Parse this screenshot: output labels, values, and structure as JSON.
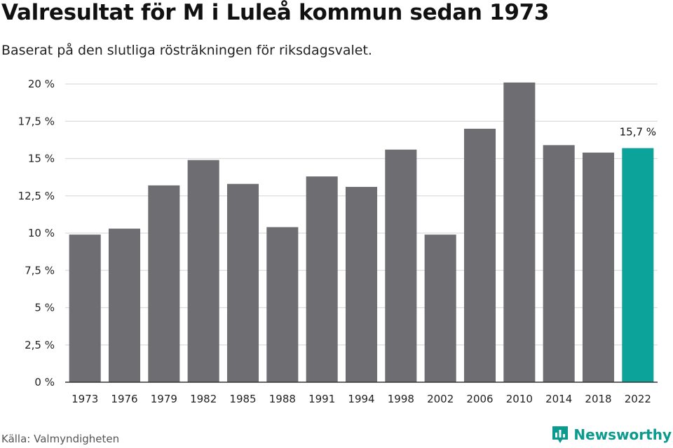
{
  "title": "Valresultat för M i Luleå kommun sedan 1973",
  "subtitle": "Baserat på den slutliga rösträkningen för riksdagsvalet.",
  "source": "Källa: Valmyndigheten",
  "brand": "Newsworthy",
  "colors": {
    "bar": "#6e6d72",
    "highlight": "#0ba39a",
    "grid": "#dcdcdc",
    "axis": "#333333",
    "brand": "#0a9a8e"
  },
  "chart_data": {
    "type": "bar",
    "categories": [
      "1973",
      "1976",
      "1979",
      "1982",
      "1985",
      "1988",
      "1991",
      "1994",
      "1998",
      "2002",
      "2006",
      "2010",
      "2014",
      "2018",
      "2022"
    ],
    "values": [
      9.9,
      10.3,
      13.2,
      14.9,
      13.3,
      10.4,
      13.8,
      13.1,
      15.6,
      9.9,
      17.0,
      20.1,
      15.9,
      15.4,
      15.7
    ],
    "highlight_index": 14,
    "annotation": "15,7 %",
    "ylim": [
      0,
      20
    ],
    "yticks": [
      "0 %",
      "2,5 %",
      "5 %",
      "7,5 %",
      "10 %",
      "12,5 %",
      "15 %",
      "17,5 %",
      "20 %"
    ],
    "ytick_values": [
      0,
      2.5,
      5,
      7.5,
      10,
      12.5,
      15,
      17.5,
      20
    ],
    "grid": true,
    "xlabel": "",
    "ylabel": ""
  }
}
